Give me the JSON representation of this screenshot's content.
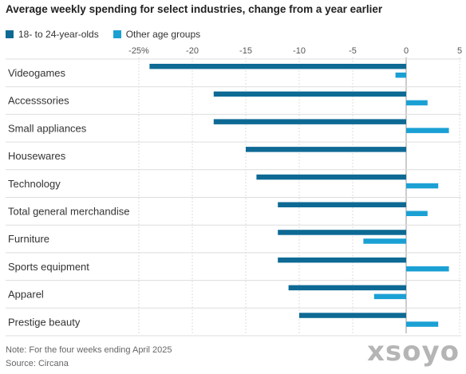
{
  "title": "Average weekly spending for select industries, change from a year earlier",
  "colors": {
    "young": "#0e6a94",
    "other": "#1ba0d4",
    "axis": "#999999",
    "grid": "#dddddd",
    "text": "#333333"
  },
  "chart_data": {
    "type": "bar",
    "orientation": "horizontal",
    "categories": [
      "Videogames",
      "Accesssories",
      "Small appliances",
      "Housewares",
      "Technology",
      "Total general merchandise",
      "Furniture",
      "Sports equipment",
      "Apparel",
      "Prestige beauty"
    ],
    "series": [
      {
        "name": "18- to 24-year-olds",
        "values": [
          -24,
          -18,
          -18,
          -15,
          -14,
          -12,
          -12,
          -12,
          -11,
          -10
        ]
      },
      {
        "name": "Other age groups",
        "values": [
          -1,
          2,
          4,
          0,
          3,
          2,
          -4,
          4,
          -3,
          3
        ]
      }
    ],
    "xlim": [
      -25,
      5
    ],
    "xticks": [
      -25,
      -20,
      -15,
      -10,
      -5,
      0,
      5
    ],
    "xtick_labels": [
      "-25%",
      "-20",
      "-15",
      "-10",
      "-5",
      "0",
      "5"
    ],
    "grid": true,
    "legend": "top-left"
  },
  "note": "Note: For the four weeks ending April 2025",
  "source": "Source: Circana",
  "watermark": "xsoyo"
}
